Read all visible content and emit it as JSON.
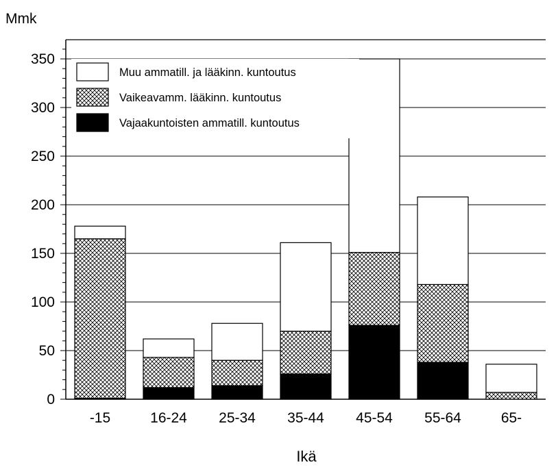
{
  "chart_data": {
    "type": "bar",
    "stacked": true,
    "unit_label": "Mmk",
    "xlabel": "Ikä",
    "ylabel": "",
    "ylim": [
      0,
      350
    ],
    "yticks": [
      0,
      50,
      100,
      150,
      200,
      250,
      300,
      350
    ],
    "minor_tick_step": 10,
    "grid": "horizontal major lines",
    "legend_position": "top-left",
    "categories": [
      "-15",
      "16-24",
      "25-34",
      "35-44",
      "45-54",
      "55-64",
      "65-"
    ],
    "series": [
      {
        "name": "Vajaakuntoisten ammatill. kuntoutus",
        "pattern": "solid-black",
        "values": [
          1,
          12,
          14,
          26,
          76,
          38,
          0
        ]
      },
      {
        "name": "Vaikeavamm. lääkinn. kuntoutus",
        "pattern": "crosshatch",
        "values": [
          164,
          31,
          26,
          44,
          75,
          80,
          7
        ]
      },
      {
        "name": "Muu ammatill. ja lääkinn. kuntoutus",
        "pattern": "white",
        "values": [
          13,
          19,
          38,
          91,
          199,
          90,
          29
        ]
      }
    ]
  },
  "colors": {
    "ink": "#000000",
    "background": "#ffffff"
  }
}
